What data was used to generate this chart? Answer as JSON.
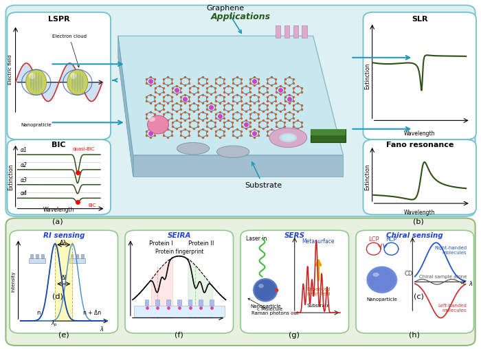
{
  "bg_color": "#ffffff",
  "top_bg_color": "#ddf0f4",
  "top_border_color": "#88c8d0",
  "app_bg_color": "#e8f0e0",
  "app_border_color": "#90b878",
  "panel_border_color": "#70c0cc",
  "app_panel_border_color": "#90c890",
  "dark_green": "#2d5016",
  "panel_titles": {
    "a": "LSPR",
    "b": "SLR",
    "c": "Fano resonance",
    "d": "BIC",
    "e": "RI sensing",
    "f": "SEIRA",
    "g": "SERS",
    "h": "Chiral sensing"
  },
  "labels": {
    "a": "(a)",
    "b": "(b)",
    "c": "(c)",
    "d": "(d)",
    "e": "(e)",
    "f": "(f)",
    "g": "(g)",
    "h": "(h)"
  },
  "applications_title": "Applications",
  "axis_labels": {
    "extinction": "Extinction",
    "wavelength": "Wavelength",
    "intensity": "Intensity"
  },
  "bic_alphas": [
    "α4",
    "α3",
    "α2",
    "α1"
  ],
  "ri_label_n": "n",
  "ri_label_dn": "n + Δn",
  "ri_label_dl": "Δλ",
  "ri_label_di": "ΔI",
  "ri_label_lambda": "λ",
  "center_graphene": "Graphene",
  "center_substrate": "Substrate"
}
